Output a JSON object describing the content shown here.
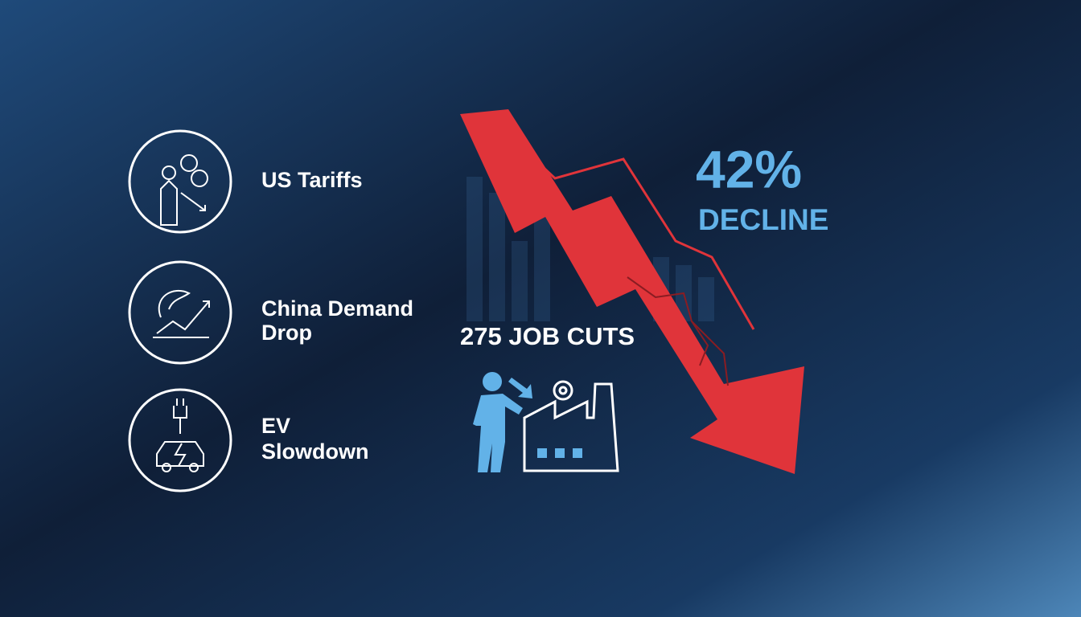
{
  "factors": [
    {
      "lines": [
        "US Tariffs"
      ]
    },
    {
      "lines": [
        "China Demand",
        "Drop"
      ]
    },
    {
      "lines": [
        "EV",
        "Slowdown"
      ]
    }
  ],
  "job_cuts": {
    "label": "275 JOB CUTS"
  },
  "decline": {
    "value": "42%",
    "label": "DECLINE"
  }
}
